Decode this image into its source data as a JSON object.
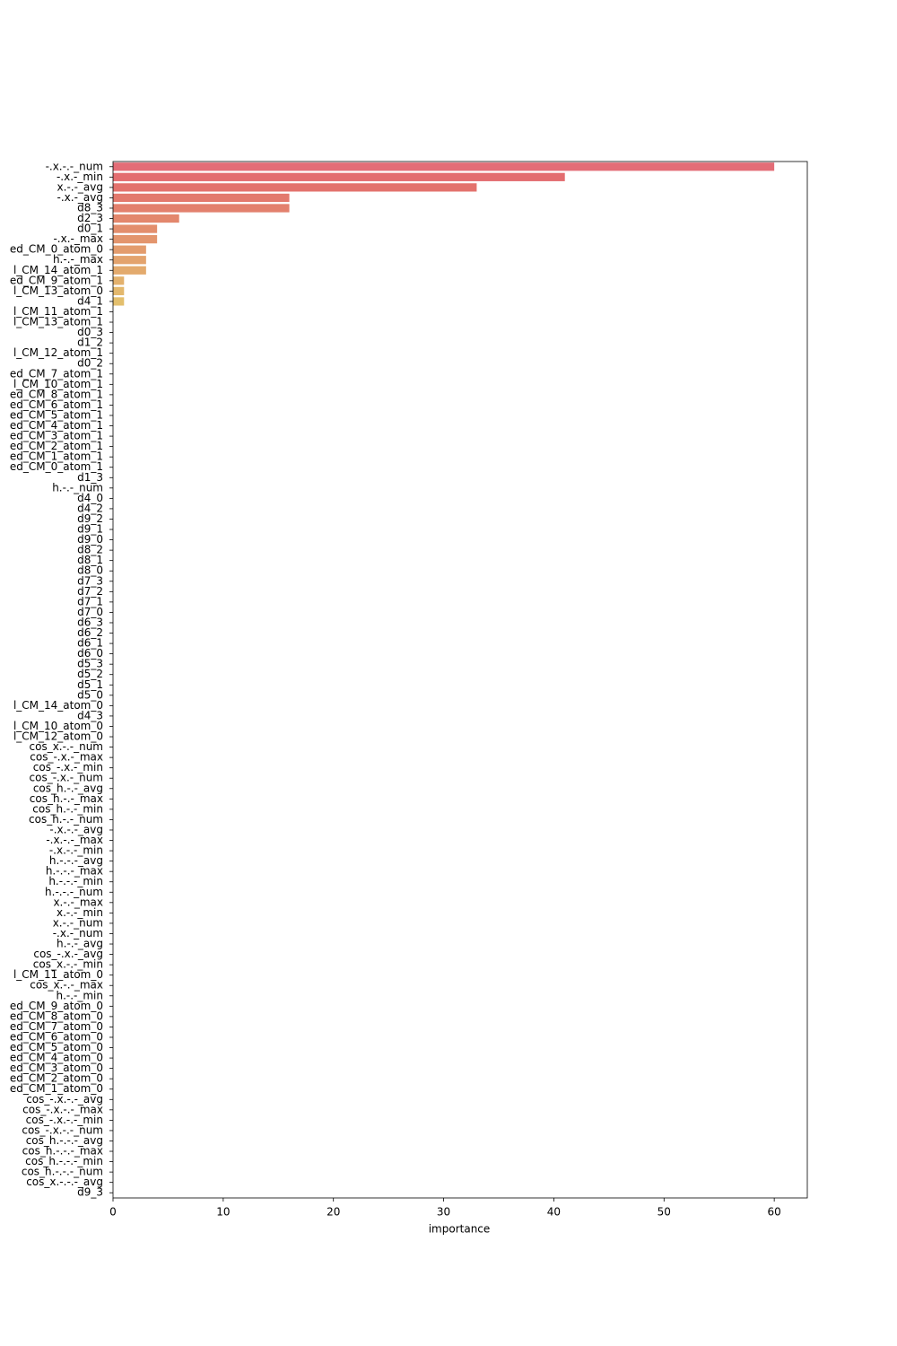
{
  "chart_data": {
    "type": "barh",
    "palette": "husl",
    "categories": [
      "-.x.-.-_num",
      "-.x.-_min",
      "x.-.-_avg",
      "-.x.-_avg",
      "d8_3",
      "d2_3",
      "d0_1",
      "-.x.-_max",
      "ed_CM_0_atom_0",
      "h.-.-_max",
      "l_CM_14_atom_1",
      "ed_CM_9_atom_1",
      "l_CM_13_atom_0",
      "d4_1",
      "l_CM_11_atom_1",
      "l_CM_13_atom_1",
      "d0_3",
      "d1_2",
      "l_CM_12_atom_1",
      "d0_2",
      "ed_CM_7_atom_1",
      "l_CM_10_atom_1",
      "ed_CM_8_atom_1",
      "ed_CM_6_atom_1",
      "ed_CM_5_atom_1",
      "ed_CM_4_atom_1",
      "ed_CM_3_atom_1",
      "ed_CM_2_atom_1",
      "ed_CM_1_atom_1",
      "ed_CM_0_atom_1",
      "d1_3",
      "h.-.-_num",
      "d4_0",
      "d4_2",
      "d9_2",
      "d9_1",
      "d9_0",
      "d8_2",
      "d8_1",
      "d8_0",
      "d7_3",
      "d7_2",
      "d7_1",
      "d7_0",
      "d6_3",
      "d6_2",
      "d6_1",
      "d6_0",
      "d5_3",
      "d5_2",
      "d5_1",
      "d5_0",
      "l_CM_14_atom_0",
      "d4_3",
      "l_CM_10_atom_0",
      "l_CM_12_atom_0",
      "cos_x.-.-_num",
      "cos_-.x.-_max",
      "cos_-.x.-_min",
      "cos_-.x.-_num",
      "cos_h.-.-_avg",
      "cos_h.-.-_max",
      "cos_h.-.-_min",
      "cos_h.-.-_num",
      "-.x.-.-_avg",
      "-.x.-.-_max",
      "-.x.-.-_min",
      "h.-.-.-_avg",
      "h.-.-.-_max",
      "h.-.-.-_min",
      "h.-.-.-_num",
      "x.-.-_max",
      "x.-.-_min",
      "x.-.-_num",
      "-.x.-_num",
      "h.-.-_avg",
      "cos_-.x.-_avg",
      "cos_x.-.-_min",
      "l_CM_11_atom_0",
      "cos_x.-.-_max",
      "h.-.-_min",
      "ed_CM_9_atom_0",
      "ed_CM_8_atom_0",
      "ed_CM_7_atom_0",
      "ed_CM_6_atom_0",
      "ed_CM_5_atom_0",
      "ed_CM_4_atom_0",
      "ed_CM_3_atom_0",
      "ed_CM_2_atom_0",
      "ed_CM_1_atom_0",
      "cos_-.x.-.-_avg",
      "cos_-.x.-.-_max",
      "cos_-.x.-.-_min",
      "cos_-.x.-.-_num",
      "cos_h.-.-.-_avg",
      "cos_h.-.-.-_max",
      "cos_h.-.-.-_min",
      "cos_h.-.-.-_num",
      "cos_x.-.-.-_avg",
      "d9_3"
    ],
    "values": [
      60,
      41,
      33,
      16,
      16,
      6,
      4,
      4,
      3,
      3,
      3,
      1,
      1,
      1,
      0,
      0,
      0,
      0,
      0,
      0,
      0,
      0,
      0,
      0,
      0,
      0,
      0,
      0,
      0,
      0,
      0,
      0,
      0,
      0,
      0,
      0,
      0,
      0,
      0,
      0,
      0,
      0,
      0,
      0,
      0,
      0,
      0,
      0,
      0,
      0,
      0,
      0,
      0,
      0,
      0,
      0,
      0,
      0,
      0,
      0,
      0,
      0,
      0,
      0,
      0,
      0,
      0,
      0,
      0,
      0,
      0,
      0,
      0,
      0,
      0,
      0,
      0,
      0,
      0,
      0,
      0,
      0,
      0,
      0,
      0,
      0,
      0,
      0,
      0,
      0,
      0,
      0,
      0,
      0,
      0,
      0,
      0,
      0,
      0,
      0
    ],
    "xlabel": "importance",
    "xlim": [
      0,
      63
    ],
    "xticks": [
      0,
      10,
      20,
      30,
      40,
      50,
      60
    ]
  }
}
